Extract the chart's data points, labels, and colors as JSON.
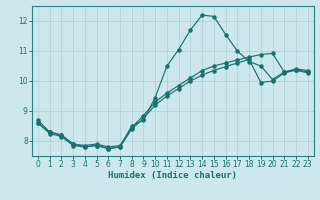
{
  "xlabel": "Humidex (Indice chaleur)",
  "bg_color": "#cce8ec",
  "grid_color": "#b0d0d8",
  "line_color": "#1a7070",
  "spine_color": "#2a8080",
  "xlim": [
    -0.5,
    23.5
  ],
  "ylim": [
    7.5,
    12.5
  ],
  "xticks": [
    0,
    1,
    2,
    3,
    4,
    5,
    6,
    7,
    8,
    9,
    10,
    11,
    12,
    13,
    14,
    15,
    16,
    17,
    18,
    19,
    20,
    21,
    22,
    23
  ],
  "yticks": [
    8,
    9,
    10,
    11,
    12
  ],
  "line1_x": [
    0,
    1,
    2,
    3,
    4,
    5,
    6,
    7,
    8,
    9,
    10,
    11,
    12,
    13,
    14,
    15,
    16,
    17,
    18,
    19,
    20,
    21,
    22,
    23
  ],
  "line1_y": [
    8.7,
    8.3,
    8.2,
    7.9,
    7.8,
    7.85,
    7.75,
    7.8,
    8.5,
    8.7,
    9.45,
    10.5,
    11.05,
    11.7,
    12.2,
    12.15,
    11.55,
    11.0,
    10.65,
    10.5,
    10.05,
    10.3,
    10.4,
    10.35
  ],
  "line2_x": [
    0,
    1,
    2,
    3,
    4,
    5,
    6,
    7,
    8,
    9,
    10,
    11,
    12,
    13,
    14,
    15,
    16,
    17,
    18,
    19,
    20,
    21,
    22,
    23
  ],
  "line2_y": [
    8.6,
    8.3,
    8.2,
    7.9,
    7.85,
    7.9,
    7.8,
    7.85,
    8.45,
    8.85,
    9.3,
    9.6,
    9.85,
    10.1,
    10.35,
    10.5,
    10.6,
    10.7,
    10.8,
    10.88,
    10.92,
    10.3,
    10.38,
    10.3
  ],
  "line3_x": [
    0,
    1,
    2,
    3,
    4,
    5,
    6,
    7,
    8,
    9,
    10,
    11,
    12,
    13,
    14,
    15,
    16,
    17,
    18,
    19,
    20,
    21,
    22,
    23
  ],
  "line3_y": [
    8.6,
    8.25,
    8.15,
    7.85,
    7.8,
    7.85,
    7.75,
    7.8,
    8.4,
    8.75,
    9.2,
    9.5,
    9.75,
    10.0,
    10.2,
    10.35,
    10.48,
    10.6,
    10.72,
    9.95,
    10.0,
    10.27,
    10.36,
    10.27
  ]
}
